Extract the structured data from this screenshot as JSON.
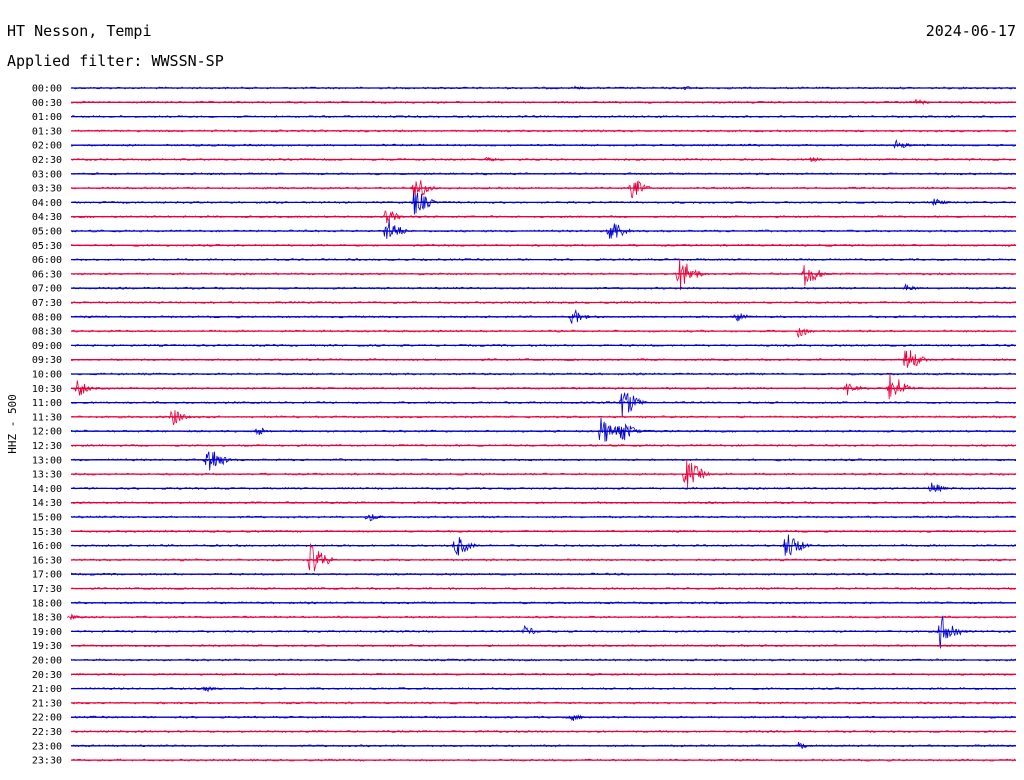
{
  "header": {
    "station": "HT Nesson, Tempi",
    "date": "2024-06-17",
    "filter": "Applied filter: WWSSN-SP"
  },
  "chart_data": {
    "type": "line",
    "title": "HT Nesson, Tempi",
    "ylabel": "HHZ - 500",
    "row_labels": [
      "00:00",
      "00:30",
      "01:00",
      "01:30",
      "02:00",
      "02:30",
      "03:00",
      "03:30",
      "04:00",
      "04:30",
      "05:00",
      "05:30",
      "06:00",
      "06:30",
      "07:00",
      "07:30",
      "08:00",
      "08:30",
      "09:00",
      "09:30",
      "10:00",
      "10:30",
      "11:00",
      "11:30",
      "12:00",
      "12:30",
      "13:00",
      "13:30",
      "14:00",
      "14:30",
      "15:00",
      "15:30",
      "16:00",
      "16:30",
      "17:00",
      "17:30",
      "18:00",
      "18:30",
      "19:00",
      "19:30",
      "20:00",
      "20:30",
      "21:00",
      "21:30",
      "22:00",
      "22:30",
      "23:00",
      "23:30"
    ],
    "colors": [
      "#0000cc",
      "#e8003c"
    ],
    "x_range_minutes": [
      0,
      30
    ],
    "events": [
      {
        "row": "00:00",
        "minute": 16,
        "amp": 0.15
      },
      {
        "row": "00:00",
        "minute": 19.5,
        "amp": 0.15
      },
      {
        "row": "00:30",
        "minute": 26.8,
        "amp": 0.3
      },
      {
        "row": "02:00",
        "minute": 26.2,
        "amp": 0.4
      },
      {
        "row": "02:30",
        "minute": 23.5,
        "amp": 0.2
      },
      {
        "row": "02:30",
        "minute": 13.2,
        "amp": 0.2
      },
      {
        "row": "03:30",
        "minute": 10.9,
        "amp": 1.0
      },
      {
        "row": "03:30",
        "minute": 17.8,
        "amp": 0.8
      },
      {
        "row": "04:00",
        "minute": 10.9,
        "amp": 1.0
      },
      {
        "row": "04:00",
        "minute": 27.4,
        "amp": 0.3
      },
      {
        "row": "04:30",
        "minute": 10.0,
        "amp": 0.6
      },
      {
        "row": "05:00",
        "minute": 10.0,
        "amp": 1.0
      },
      {
        "row": "05:00",
        "minute": 17.1,
        "amp": 1.0
      },
      {
        "row": "06:30",
        "minute": 19.3,
        "amp": 1.3
      },
      {
        "row": "06:30",
        "minute": 23.3,
        "amp": 1.0
      },
      {
        "row": "07:00",
        "minute": 26.5,
        "amp": 0.3
      },
      {
        "row": "08:00",
        "minute": 15.9,
        "amp": 0.6
      },
      {
        "row": "08:00",
        "minute": 21.1,
        "amp": 0.4
      },
      {
        "row": "08:30",
        "minute": 23.1,
        "amp": 0.5
      },
      {
        "row": "09:30",
        "minute": 26.5,
        "amp": 1.0
      },
      {
        "row": "10:30",
        "minute": 0.2,
        "amp": 0.7
      },
      {
        "row": "10:30",
        "minute": 24.6,
        "amp": 0.6
      },
      {
        "row": "10:30",
        "minute": 26.0,
        "amp": 1.2
      },
      {
        "row": "11:00",
        "minute": 17.5,
        "amp": 1.2
      },
      {
        "row": "11:30",
        "minute": 3.2,
        "amp": 0.7
      },
      {
        "row": "12:00",
        "minute": 16.8,
        "amp": 1.1
      },
      {
        "row": "12:00",
        "minute": 17.4,
        "amp": 1.0
      },
      {
        "row": "12:00",
        "minute": 5.9,
        "amp": 0.4
      },
      {
        "row": "13:00",
        "minute": 4.3,
        "amp": 1.2
      },
      {
        "row": "13:30",
        "minute": 19.5,
        "amp": 1.2
      },
      {
        "row": "14:00",
        "minute": 27.3,
        "amp": 0.5
      },
      {
        "row": "15:00",
        "minute": 9.4,
        "amp": 0.4
      },
      {
        "row": "16:00",
        "minute": 22.7,
        "amp": 1.1
      },
      {
        "row": "16:00",
        "minute": 12.2,
        "amp": 0.9
      },
      {
        "row": "16:30",
        "minute": 7.6,
        "amp": 1.2
      },
      {
        "row": "18:30",
        "minute": 0.0,
        "amp": 0.2
      },
      {
        "row": "19:00",
        "minute": 27.6,
        "amp": 1.3
      },
      {
        "row": "19:00",
        "minute": 14.4,
        "amp": 0.4
      },
      {
        "row": "21:00",
        "minute": 4.2,
        "amp": 0.3
      },
      {
        "row": "22:00",
        "minute": 15.9,
        "amp": 0.3
      },
      {
        "row": "23:00",
        "minute": 23.1,
        "amp": 0.3
      }
    ]
  }
}
